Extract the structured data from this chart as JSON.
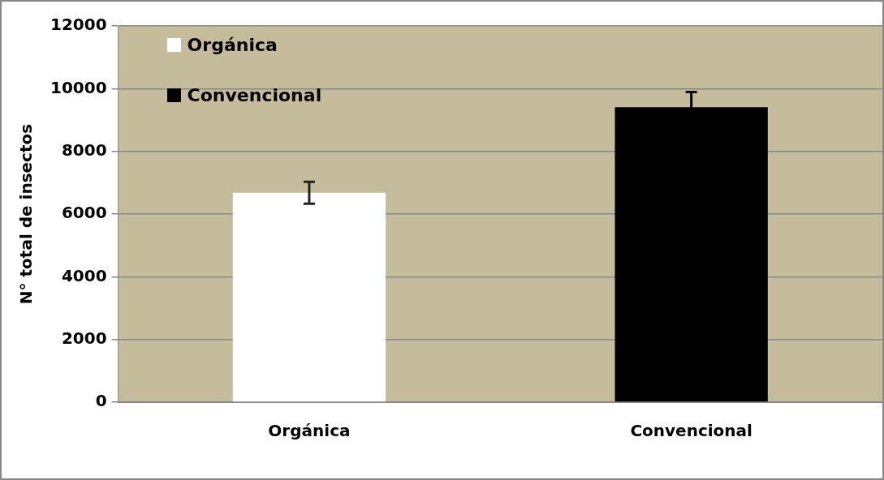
{
  "chart_data": {
    "type": "bar",
    "ylabel": "N° total de insectos",
    "categories": [
      "Orgánica",
      "Convencional"
    ],
    "series": [
      {
        "name": "Orgánica",
        "color": "#ffffff",
        "values": [
          6680,
          null
        ],
        "errors": [
          350,
          null
        ]
      },
      {
        "name": "Convencional",
        "color": "#000000",
        "values": [
          null,
          9410
        ],
        "errors": [
          null,
          480
        ]
      }
    ],
    "ylim": [
      0,
      12000
    ],
    "yticks": [
      0,
      2000,
      4000,
      6000,
      8000,
      10000,
      12000
    ],
    "grid": "y",
    "legend": "top left"
  }
}
